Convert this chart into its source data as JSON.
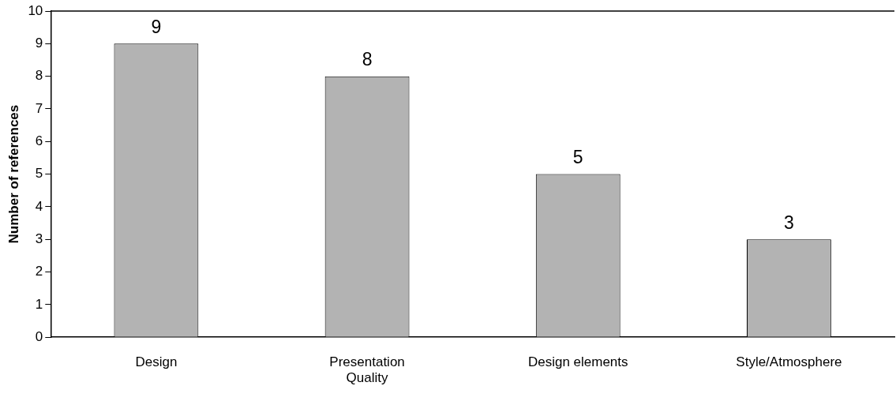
{
  "chart_data": {
    "type": "bar",
    "ylabel": "Number of references",
    "categories": [
      "Design",
      "Presentation Quality",
      "Design elements",
      "Style/Atmosphere"
    ],
    "values": [
      9,
      8,
      5,
      3
    ],
    "color": "#b3b3b3",
    "data_labels": true,
    "ylim": [
      0,
      10
    ],
    "yticks": [
      0,
      1,
      2,
      3,
      4,
      5,
      6,
      7,
      8,
      9,
      10
    ],
    "grid": false,
    "legend": false
  }
}
